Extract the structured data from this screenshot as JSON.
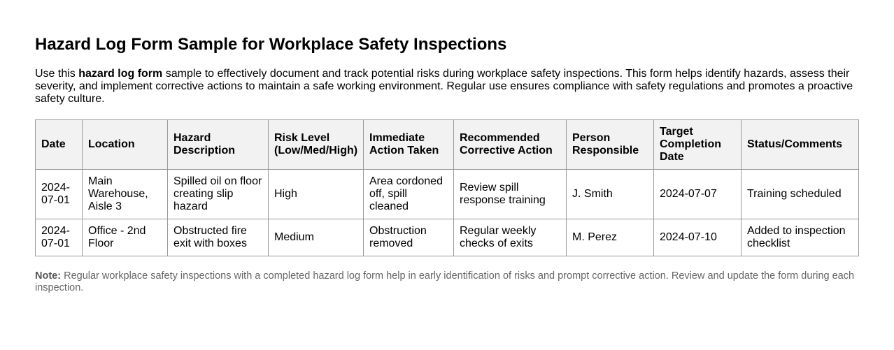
{
  "title": "Hazard Log Form Sample for Workplace Safety Inspections",
  "intro": {
    "before": "Use this ",
    "bold": "hazard log form",
    "after": " sample to effectively document and track potential risks during workplace safety inspections. This form helps identify hazards, assess their severity, and implement corrective actions to maintain a safe working environment. Regular use ensures compliance with safety regulations and promotes a proactive safety culture."
  },
  "table": {
    "headers": [
      "Date",
      "Location",
      "Hazard Description",
      "Risk Level (Low/Med/High)",
      "Immediate Action Taken",
      "Recommended Corrective Action",
      "Person Responsible",
      "Target Completion Date",
      "Status/Comments"
    ],
    "rows": [
      [
        "2024-07-01",
        "Main Warehouse, Aisle 3",
        "Spilled oil on floor creating slip hazard",
        "High",
        "Area cordoned off, spill cleaned",
        "Review spill response training",
        "J. Smith",
        "2024-07-07",
        "Training scheduled"
      ],
      [
        "2024-07-01",
        "Office - 2nd Floor",
        "Obstructed fire exit with boxes",
        "Medium",
        "Obstruction removed",
        "Regular weekly checks of exits",
        "M. Perez",
        "2024-07-10",
        "Added to inspection checklist"
      ]
    ]
  },
  "note": {
    "label": "Note:",
    "text": " Regular workplace safety inspections with a completed hazard log form help in early identification of risks and prompt corrective action. Review and update the form during each inspection."
  }
}
